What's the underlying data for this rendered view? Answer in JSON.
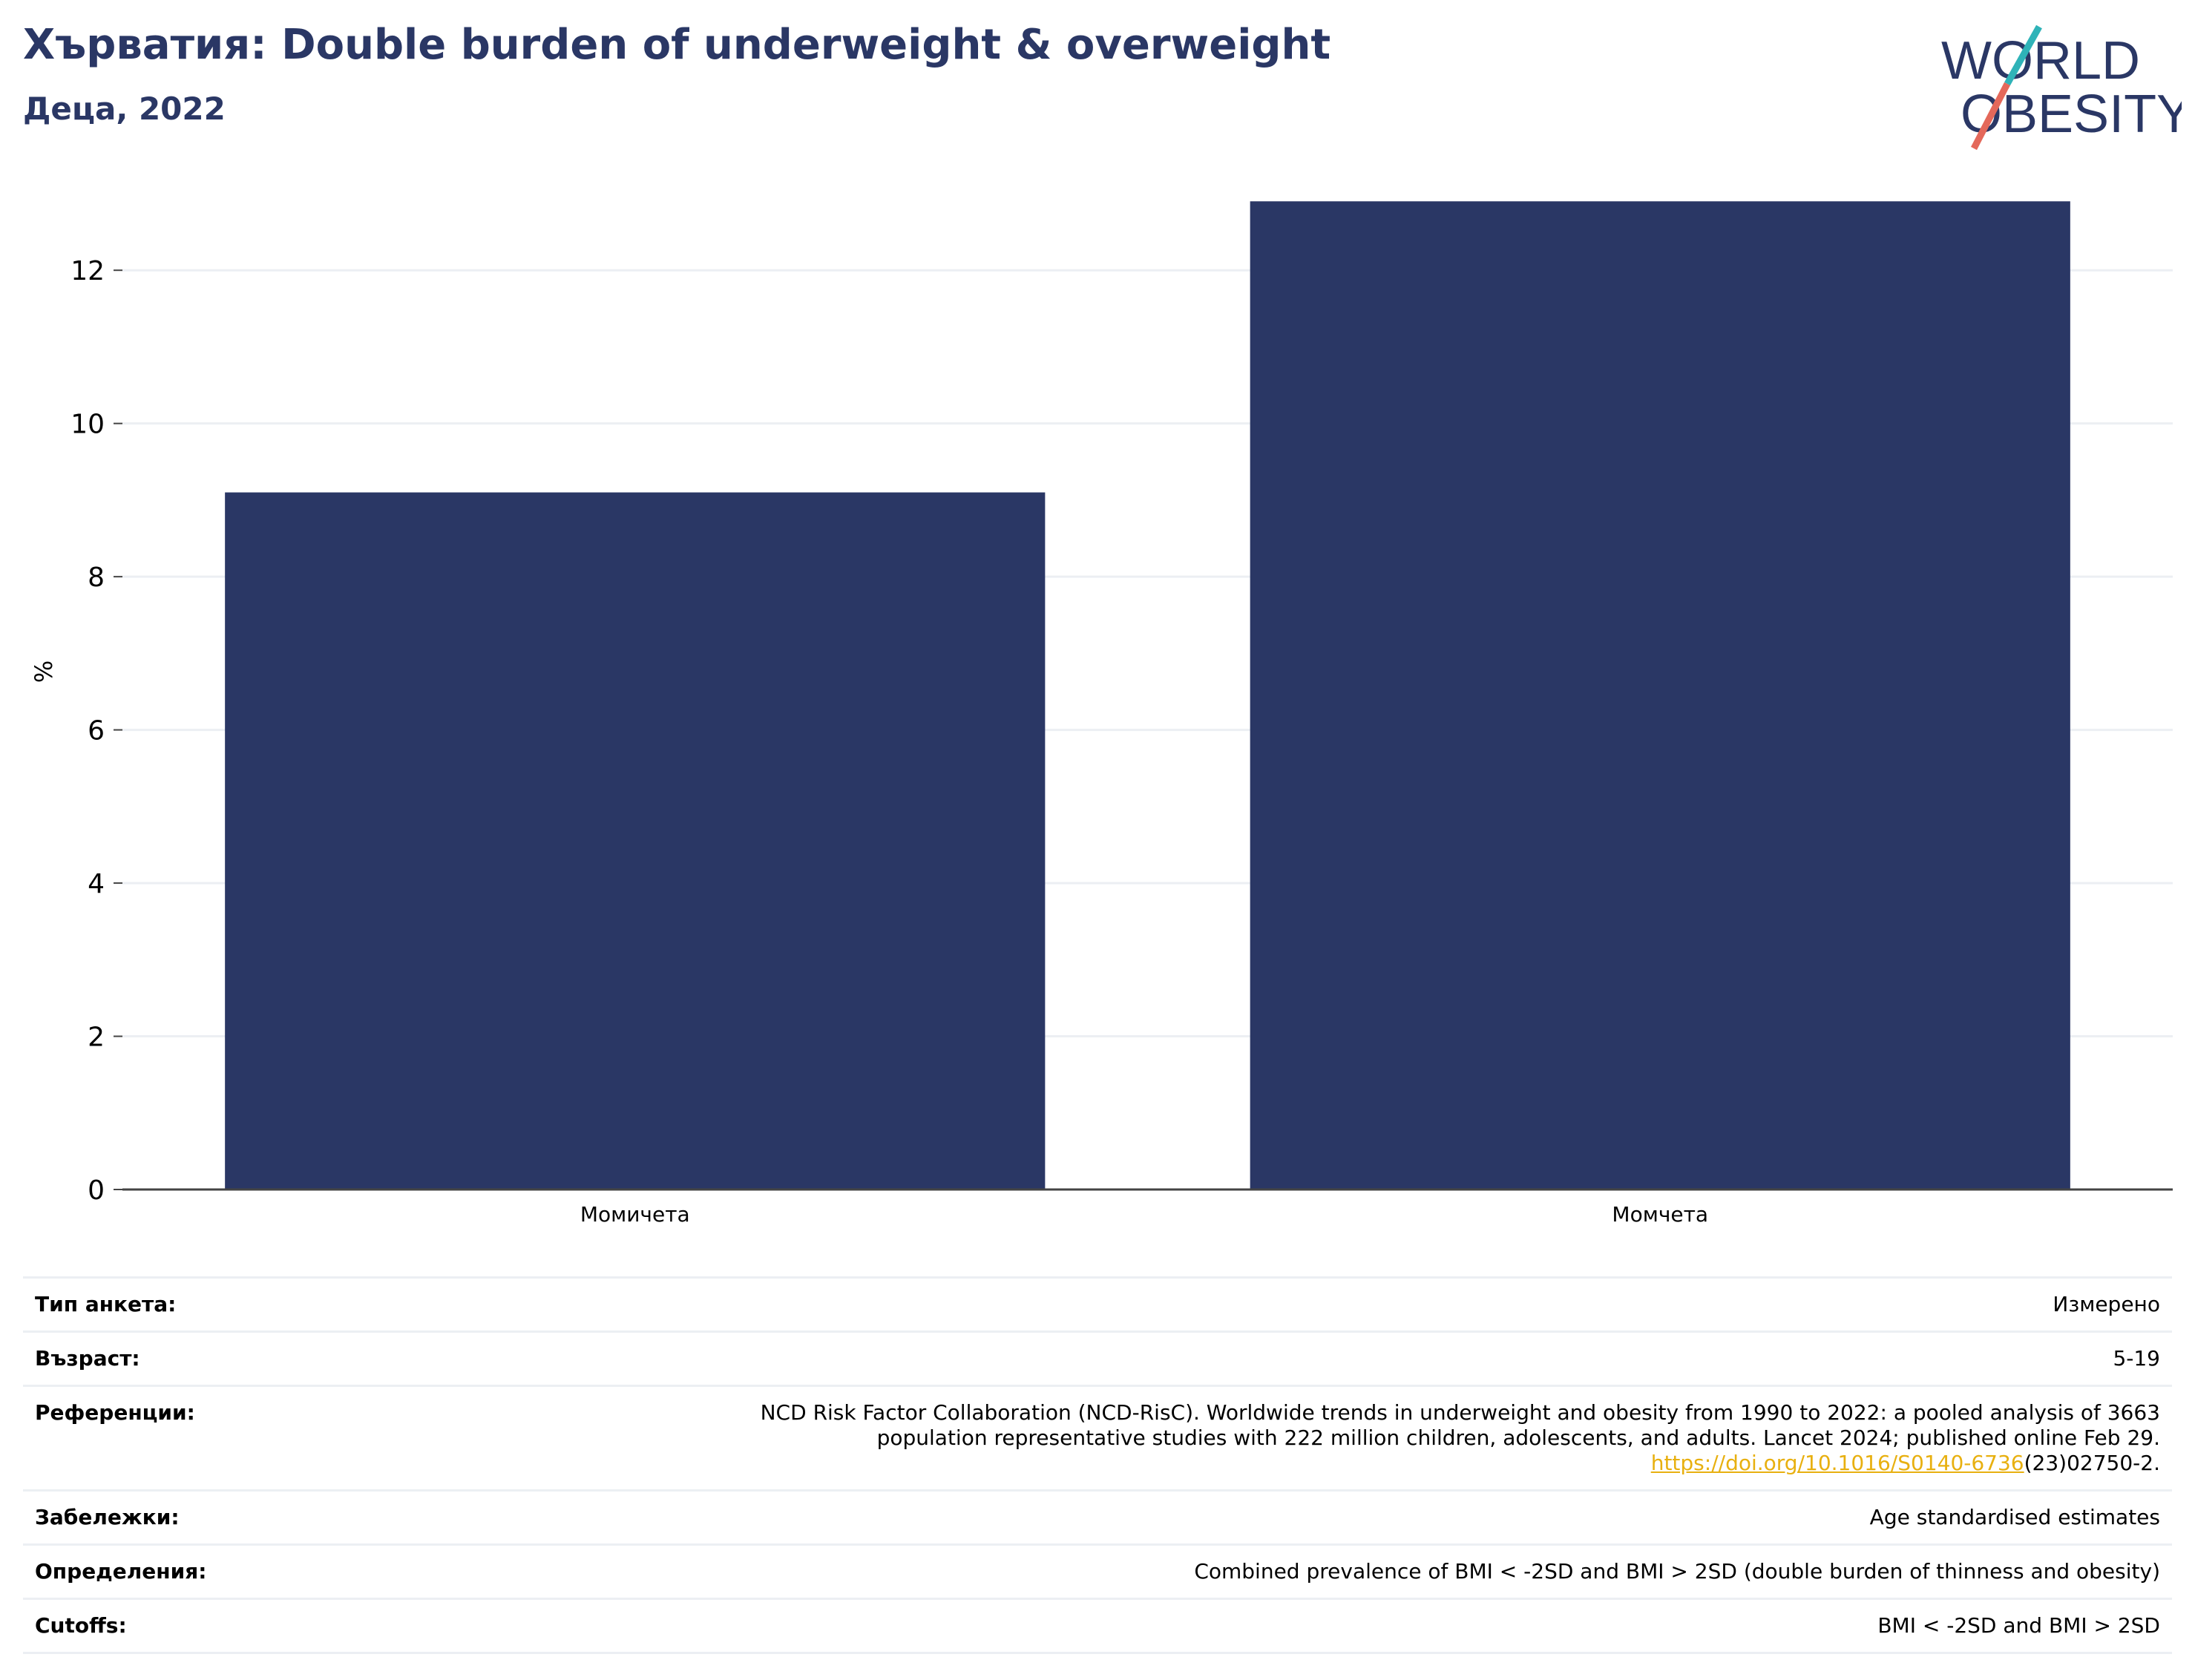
{
  "header": {
    "title": "Хърватия: Double burden of underweight & overweight",
    "subtitle": "Деца, 2022"
  },
  "logo": {
    "line1": "WORLD",
    "line2": "OBESITY"
  },
  "chart_data": {
    "type": "bar",
    "categories": [
      "Момичета",
      "Момчета"
    ],
    "values": [
      9.1,
      12.9
    ],
    "title": "",
    "xlabel": "",
    "ylabel": "%",
    "ylim": [
      0,
      13.3
    ],
    "yticks": [
      0,
      2,
      4,
      6,
      8,
      10,
      12
    ],
    "grid": true,
    "legend": "none",
    "bar_color": "#2a3765"
  },
  "metadata": {
    "rows": [
      {
        "key": "Тип анкета:",
        "value": "Измерено"
      },
      {
        "key": "Възраст:",
        "value": "5-19"
      },
      {
        "key": "Референции:",
        "value_lines": [
          "NCD Risk Factor Collaboration (NCD-RisC). Worldwide trends in underweight and obesity from 1990 to 2022: a pooled analysis of 3663",
          "population representative studies with 222 million children, adolescents, and adults. Lancet 2024; published online Feb 29."
        ],
        "link": "https://doi.org/10.1016/S0140-6736",
        "link_suffix": "(23)02750-2."
      },
      {
        "key": "Забележки:",
        "value": "Age standardised estimates"
      },
      {
        "key": "Определения:",
        "value": "Combined prevalence of BMI < -2SD and BMI > 2SD (double burden of thinness and obesity)"
      },
      {
        "key": "Cutoffs:",
        "value": "BMI < -2SD and BMI > 2SD"
      }
    ]
  }
}
